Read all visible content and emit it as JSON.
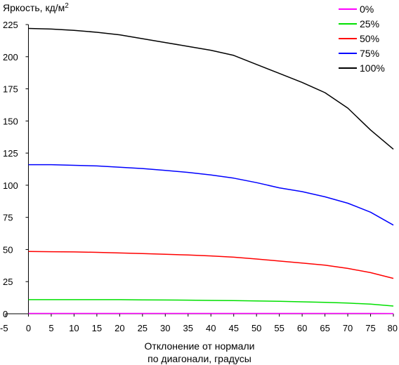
{
  "chart_data": {
    "type": "line",
    "ylabel": "Яркость, кд/м",
    "ylabel_sup": "2",
    "xlabel_line1": "Отклонение от нормали",
    "xlabel_line2": "по диагонали, градусы",
    "xlim": [
      -5,
      80
    ],
    "ylim": [
      0,
      225
    ],
    "xticks": [
      -5,
      0,
      5,
      10,
      15,
      20,
      25,
      30,
      35,
      40,
      45,
      50,
      55,
      60,
      65,
      70,
      75,
      80
    ],
    "yticks": [
      0,
      25,
      50,
      75,
      100,
      125,
      150,
      175,
      200,
      225
    ],
    "grid": false,
    "legend_position": "top-right",
    "x": [
      0,
      5,
      10,
      15,
      20,
      25,
      30,
      35,
      40,
      45,
      50,
      55,
      60,
      65,
      70,
      75,
      80
    ],
    "series": [
      {
        "name": "0%",
        "color": "#ff00ff",
        "values": [
          0.3,
          0.3,
          0.3,
          0.3,
          0.3,
          0.3,
          0.3,
          0.3,
          0.3,
          0.3,
          0.3,
          0.3,
          0.3,
          0.3,
          0.3,
          0.3,
          0.2
        ]
      },
      {
        "name": "25%",
        "color": "#00e000",
        "values": [
          11,
          11,
          11,
          11,
          11,
          10.8,
          10.7,
          10.6,
          10.4,
          10.2,
          10,
          9.7,
          9.3,
          8.9,
          8.3,
          7.5,
          6
        ]
      },
      {
        "name": "50%",
        "color": "#ff0000",
        "values": [
          48.5,
          48.3,
          48.1,
          47.8,
          47.3,
          46.8,
          46.3,
          45.7,
          45,
          44,
          42.6,
          41,
          39.5,
          37.8,
          35.3,
          32,
          27.5
        ]
      },
      {
        "name": "75%",
        "color": "#0000ff",
        "values": [
          116,
          116,
          115.5,
          115,
          114,
          113,
          111.5,
          110,
          108,
          105.5,
          102,
          98,
          95,
          91,
          86,
          79,
          69
        ]
      },
      {
        "name": "100%",
        "color": "#000000",
        "values": [
          222,
          221.5,
          220.5,
          219,
          217,
          214,
          211,
          208,
          205,
          201,
          194,
          187,
          180,
          172,
          160,
          143,
          128
        ]
      }
    ]
  }
}
